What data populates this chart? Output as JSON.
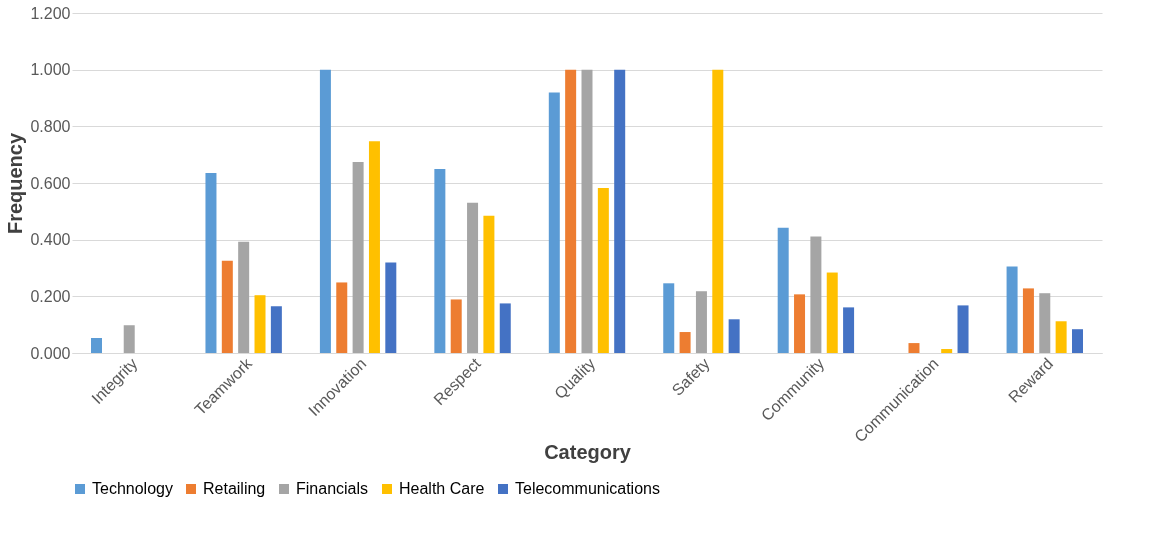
{
  "chart_data": {
    "type": "bar",
    "xlabel": "Category",
    "ylabel": "Frequency",
    "categories": [
      "Integrity",
      "Teamwork",
      "Innovation",
      "Respect",
      "Quality",
      "Safety",
      "Community",
      "Communication",
      "Reward"
    ],
    "series": [
      {
        "name": "Technology",
        "color": "#5b9bd5",
        "values": [
          0.053,
          0.635,
          1.0,
          0.649,
          0.919,
          0.246,
          0.442,
          0,
          0.305
        ]
      },
      {
        "name": "Retailing",
        "color": "#ed7d31",
        "values": [
          0,
          0.326,
          0.249,
          0.189,
          1.0,
          0.074,
          0.207,
          0.035,
          0.228
        ]
      },
      {
        "name": "Financials",
        "color": "#a5a5a5",
        "values": [
          0.098,
          0.393,
          0.674,
          0.53,
          1.0,
          0.218,
          0.411,
          0,
          0.211
        ]
      },
      {
        "name": "Health Care",
        "color": "#ffc000",
        "values": [
          0,
          0.204,
          0.747,
          0.484,
          0.582,
          1.0,
          0.284,
          0.014,
          0.112
        ]
      },
      {
        "name": "Telecommunications",
        "color": "#4472c4",
        "values": [
          0,
          0.165,
          0.319,
          0.175,
          1.0,
          0.119,
          0.161,
          0.168,
          0.084
        ]
      }
    ],
    "ylim": [
      0,
      1.2
    ],
    "yticks": [
      {
        "value": 0,
        "label": "0.000"
      },
      {
        "value": 0.2,
        "label": "0.200"
      },
      {
        "value": 0.4,
        "label": "0.400"
      },
      {
        "value": 0.6,
        "label": "0.600"
      },
      {
        "value": 0.8,
        "label": "0.800"
      },
      {
        "value": 1.0,
        "label": "1.000"
      },
      {
        "value": 1.2,
        "label": "1.200"
      }
    ],
    "grid": "y",
    "legend": "bottom"
  }
}
